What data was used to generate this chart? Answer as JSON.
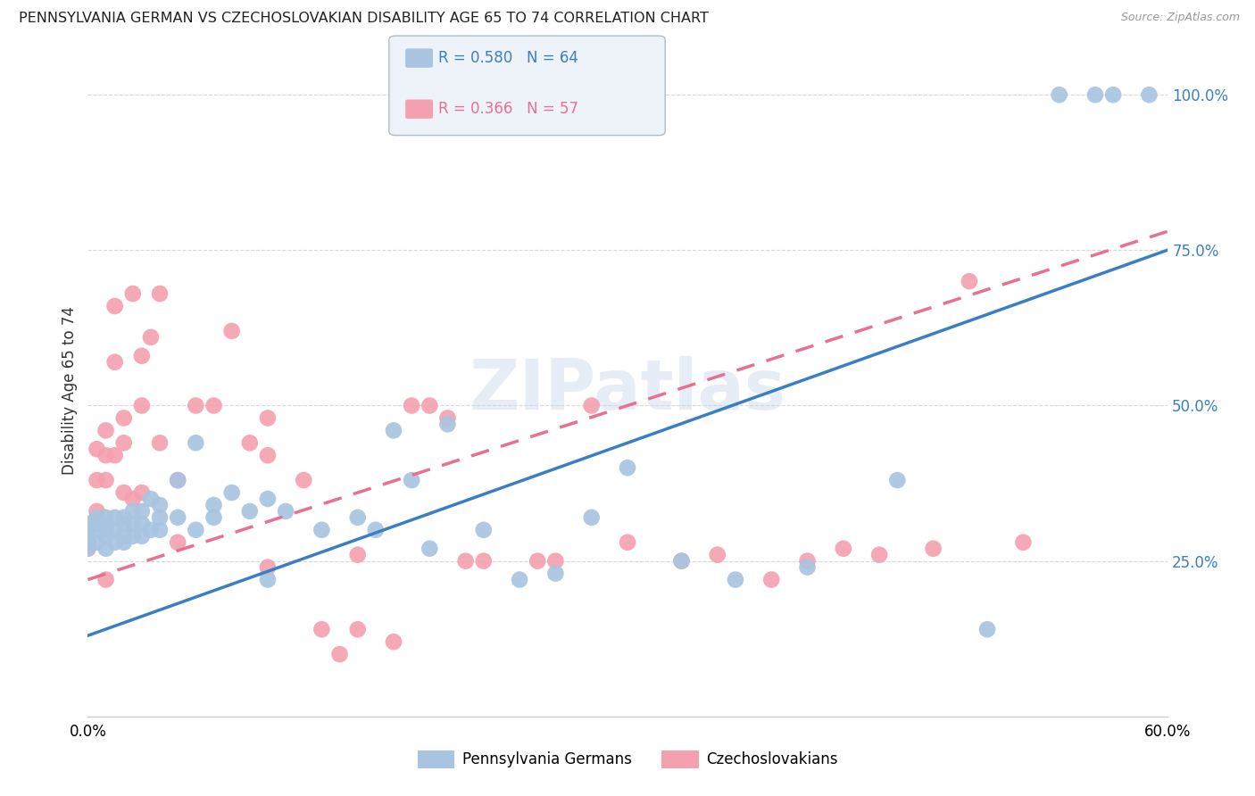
{
  "title": "PENNSYLVANIA GERMAN VS CZECHOSLOVAKIAN DISABILITY AGE 65 TO 74 CORRELATION CHART",
  "source": "Source: ZipAtlas.com",
  "ylabel": "Disability Age 65 to 74",
  "xmin": 0.0,
  "xmax": 0.6,
  "ymin": 0.0,
  "ymax": 1.05,
  "xticks": [
    0.0,
    0.1,
    0.2,
    0.3,
    0.4,
    0.5,
    0.6
  ],
  "xticklabels": [
    "0.0%",
    "",
    "",
    "",
    "",
    "",
    "60.0%"
  ],
  "yticks_right": [
    0.0,
    0.25,
    0.5,
    0.75,
    1.0
  ],
  "yticklabels_right": [
    "",
    "25.0%",
    "50.0%",
    "75.0%",
    "100.0%"
  ],
  "pg_color": "#a8c4e0",
  "cz_color": "#f4a0b0",
  "pg_line_color": "#3a7fc1",
  "cz_line_color": "#e87090",
  "pg_R": 0.58,
  "pg_N": 64,
  "cz_R": 0.366,
  "cz_N": 57,
  "watermark": "ZIPatlas",
  "background_color": "#ffffff",
  "grid_color": "#d8d8d8",
  "pg_line_y0": 0.13,
  "pg_line_y1": 0.75,
  "cz_line_y0": 0.22,
  "cz_line_y1": 0.78,
  "pg_scatter_x": [
    0.0,
    0.0,
    0.0,
    0.0,
    0.0,
    0.005,
    0.005,
    0.005,
    0.005,
    0.01,
    0.01,
    0.01,
    0.01,
    0.01,
    0.015,
    0.015,
    0.015,
    0.02,
    0.02,
    0.02,
    0.02,
    0.025,
    0.025,
    0.025,
    0.03,
    0.03,
    0.03,
    0.035,
    0.035,
    0.04,
    0.04,
    0.04,
    0.05,
    0.05,
    0.06,
    0.06,
    0.07,
    0.07,
    0.08,
    0.09,
    0.1,
    0.1,
    0.11,
    0.13,
    0.15,
    0.16,
    0.17,
    0.18,
    0.19,
    0.2,
    0.22,
    0.24,
    0.26,
    0.28,
    0.3,
    0.33,
    0.36,
    0.4,
    0.45,
    0.5,
    0.54,
    0.56,
    0.57,
    0.59
  ],
  "pg_scatter_y": [
    0.27,
    0.28,
    0.29,
    0.3,
    0.31,
    0.28,
    0.3,
    0.31,
    0.32,
    0.27,
    0.29,
    0.31,
    0.3,
    0.32,
    0.28,
    0.3,
    0.32,
    0.28,
    0.29,
    0.31,
    0.32,
    0.29,
    0.31,
    0.33,
    0.29,
    0.31,
    0.33,
    0.3,
    0.35,
    0.3,
    0.32,
    0.34,
    0.38,
    0.32,
    0.44,
    0.3,
    0.34,
    0.32,
    0.36,
    0.33,
    0.35,
    0.22,
    0.33,
    0.3,
    0.32,
    0.3,
    0.46,
    0.38,
    0.27,
    0.47,
    0.3,
    0.22,
    0.23,
    0.32,
    0.4,
    0.25,
    0.22,
    0.24,
    0.38,
    0.14,
    1.0,
    1.0,
    1.0,
    1.0
  ],
  "cz_scatter_x": [
    0.0,
    0.0,
    0.0,
    0.005,
    0.005,
    0.005,
    0.01,
    0.01,
    0.01,
    0.01,
    0.015,
    0.015,
    0.015,
    0.02,
    0.02,
    0.02,
    0.025,
    0.025,
    0.03,
    0.03,
    0.03,
    0.035,
    0.04,
    0.04,
    0.05,
    0.05,
    0.06,
    0.07,
    0.08,
    0.09,
    0.1,
    0.1,
    0.1,
    0.12,
    0.13,
    0.14,
    0.15,
    0.15,
    0.17,
    0.18,
    0.19,
    0.2,
    0.21,
    0.22,
    0.25,
    0.26,
    0.28,
    0.3,
    0.33,
    0.35,
    0.38,
    0.4,
    0.42,
    0.44,
    0.47,
    0.49,
    0.52
  ],
  "cz_scatter_y": [
    0.27,
    0.3,
    0.28,
    0.43,
    0.38,
    0.33,
    0.46,
    0.42,
    0.38,
    0.22,
    0.66,
    0.57,
    0.42,
    0.48,
    0.44,
    0.36,
    0.68,
    0.35,
    0.58,
    0.5,
    0.36,
    0.61,
    0.68,
    0.44,
    0.38,
    0.28,
    0.5,
    0.5,
    0.62,
    0.44,
    0.48,
    0.42,
    0.24,
    0.38,
    0.14,
    0.1,
    0.26,
    0.14,
    0.12,
    0.5,
    0.5,
    0.48,
    0.25,
    0.25,
    0.25,
    0.25,
    0.5,
    0.28,
    0.25,
    0.26,
    0.22,
    0.25,
    0.27,
    0.26,
    0.27,
    0.7,
    0.28
  ]
}
